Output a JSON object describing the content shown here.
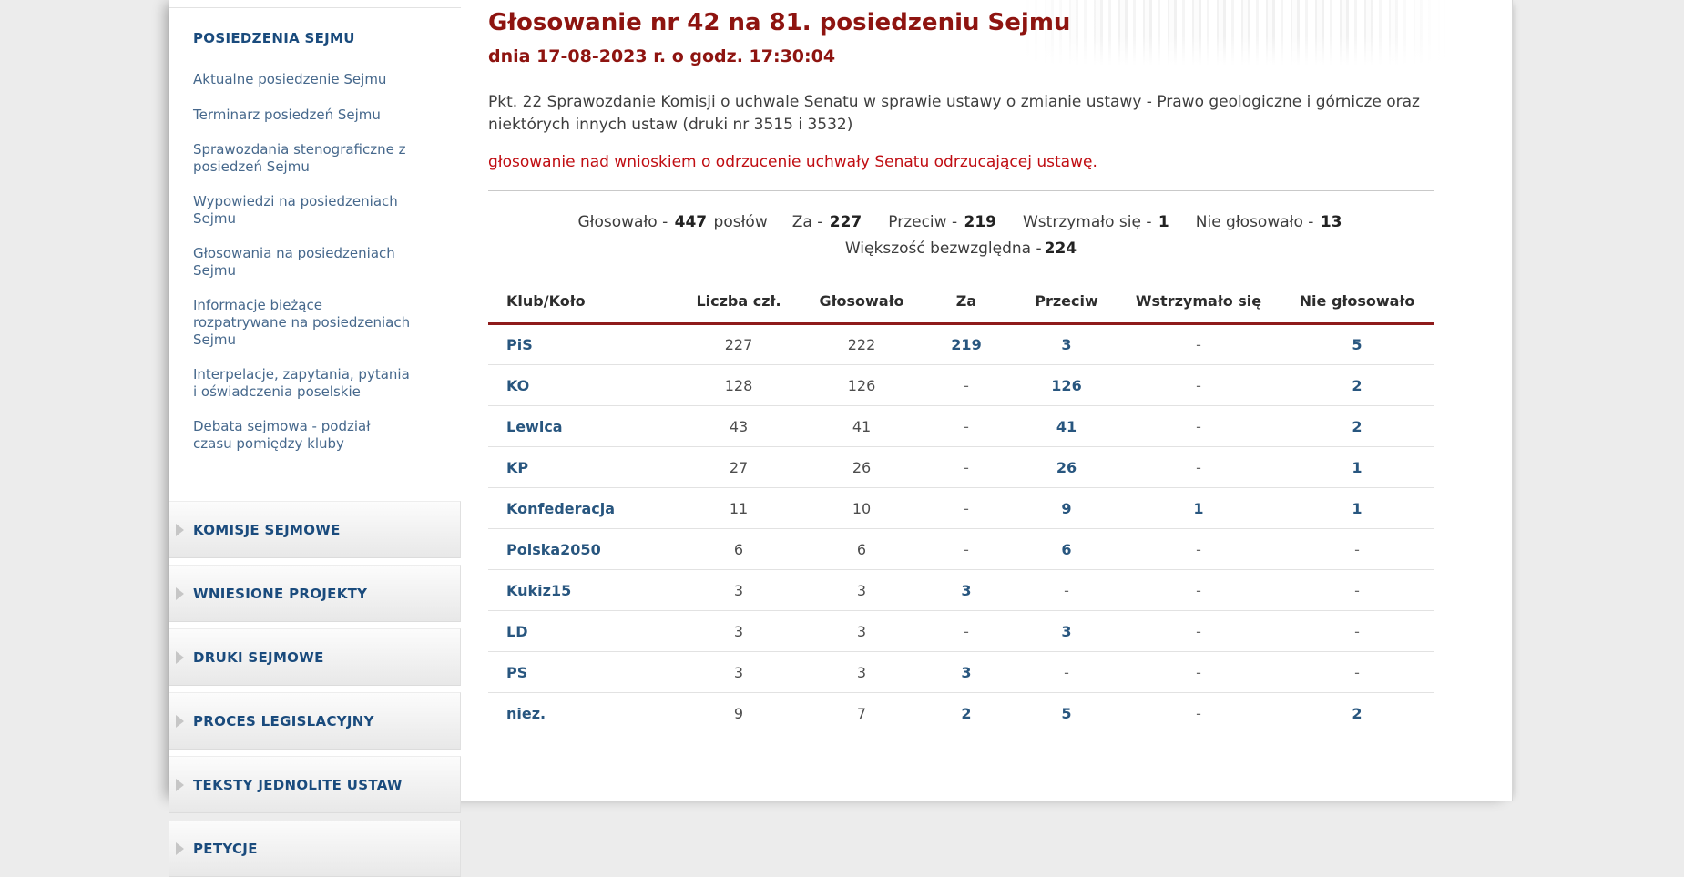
{
  "colors": {
    "title_red": "#8e1410",
    "subject_red": "#c00d12",
    "table_rule_red": "#8e1b1b",
    "table_link_blue": "#28567f",
    "sidebar_header_blue": "#1a4b7d",
    "sidebar_link_blue": "#46688c"
  },
  "sidebar": {
    "expanded_section": {
      "label": "POSIEDZENIA SEJMU",
      "items": [
        "Aktualne posiedzenie Sejmu",
        "Terminarz posiedzeń Sejmu",
        "Sprawozdania stenograficzne z posiedzeń Sejmu",
        "Wypowiedzi na posiedzeniach Sejmu",
        "Głosowania na posiedzeniach Sejmu",
        "Informacje bieżące rozpatrywane na posiedzeniach Sejmu",
        "Interpelacje, zapytania, pytania i oświadczenia poselskie",
        "Debata sejmowa - podział czasu pomiędzy kluby"
      ]
    },
    "collapsed_sections": [
      "KOMISJE SEJMOWE",
      "WNIESIONE PROJEKTY",
      "DRUKI SEJMOWE",
      "PROCES LEGISLACYJNY",
      "TEKSTY JEDNOLITE USTAW",
      "PETYCJE"
    ]
  },
  "main": {
    "title": "Głosowanie nr 42 na 81. posiedzeniu Sejmu",
    "datetime": "dnia 17-08-2023 r. o godz. 17:30:04",
    "description": "Pkt. 22 Sprawozdanie Komisji o uchwale Senatu w sprawie ustawy o zmianie ustawy - Prawo geologiczne i górnicze oraz niektórych innych ustaw (druki nr 3515 i 3532)",
    "subject": "głosowanie nad wnioskiem o odrzucenie uchwały Senatu odrzucającej ustawę.",
    "summary": {
      "items": [
        {
          "label": "Głosowało -",
          "value": "447",
          "suffix": "posłów"
        },
        {
          "label": "Za -",
          "value": "227",
          "suffix": ""
        },
        {
          "label": "Przeciw -",
          "value": "219",
          "suffix": ""
        },
        {
          "label": "Wstrzymało się -",
          "value": "1",
          "suffix": ""
        },
        {
          "label": "Nie głosowało -",
          "value": "13",
          "suffix": ""
        }
      ],
      "majority_label": "Większość bezwzględna -",
      "majority_value": "224"
    },
    "table": {
      "columns": [
        "Klub/Koło",
        "Liczba czł.",
        "Głosowało",
        "Za",
        "Przeciw",
        "Wstrzymało się",
        "Nie głosowało"
      ],
      "rows": [
        {
          "club": "PiS",
          "cells": [
            "227",
            "222",
            "219",
            "3",
            "-",
            "5"
          ]
        },
        {
          "club": "KO",
          "cells": [
            "128",
            "126",
            "-",
            "126",
            "-",
            "2"
          ]
        },
        {
          "club": "Lewica",
          "cells": [
            "43",
            "41",
            "-",
            "41",
            "-",
            "2"
          ]
        },
        {
          "club": "KP",
          "cells": [
            "27",
            "26",
            "-",
            "26",
            "-",
            "1"
          ]
        },
        {
          "club": "Konfederacja",
          "cells": [
            "11",
            "10",
            "-",
            "9",
            "1",
            "1"
          ]
        },
        {
          "club": "Polska2050",
          "cells": [
            "6",
            "6",
            "-",
            "6",
            "-",
            "-"
          ]
        },
        {
          "club": "Kukiz15",
          "cells": [
            "3",
            "3",
            "3",
            "-",
            "-",
            "-"
          ]
        },
        {
          "club": "LD",
          "cells": [
            "3",
            "3",
            "-",
            "3",
            "-",
            "-"
          ]
        },
        {
          "club": "PS",
          "cells": [
            "3",
            "3",
            "3",
            "-",
            "-",
            "-"
          ]
        },
        {
          "club": "niez.",
          "cells": [
            "9",
            "7",
            "2",
            "5",
            "-",
            "2"
          ]
        }
      ]
    }
  }
}
